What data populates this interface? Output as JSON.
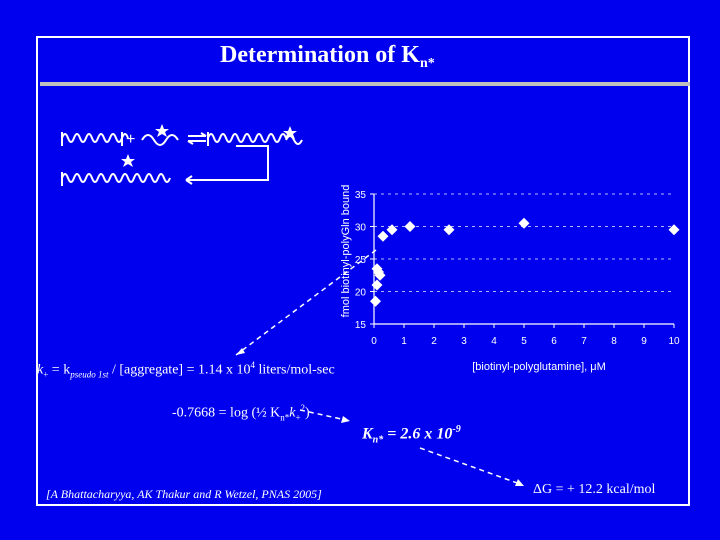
{
  "title": {
    "main": "Determination of K",
    "subscript": "n*"
  },
  "equations": {
    "kplus": {
      "lhs_k": "k",
      "lhs_sub": "+",
      "eq": " = k",
      "pseudo_sub": "pseudo 1st",
      "rest": " / [aggregate] = 1.14 x 10",
      "exp": "4",
      "units": " liters/mol-sec"
    },
    "log": {
      "pre": "-0.7668 = log (½ K",
      "sub1": "n*",
      "mid": "k",
      "sub2": "+",
      "sup2": "2",
      "post": ")"
    },
    "result": {
      "k": "K",
      "sub": "n*",
      "val": " = 2.6 x 10",
      "exp": "-9"
    },
    "deltaG": "ΔG = + 12.2 kcal/mol"
  },
  "citation": "[A Bhattacharyya, AK Thakur and R Wetzel, PNAS 2005]",
  "chart_data": {
    "type": "scatter",
    "title": "",
    "xlabel": "[biotinyl-polyglutamine], μM",
    "ylabel": "fmol biotinyl-polyGln bound",
    "xlim": [
      0,
      10
    ],
    "ylim": [
      15,
      35
    ],
    "xticks": [
      0,
      1,
      2,
      3,
      4,
      5,
      6,
      7,
      8,
      9,
      10
    ],
    "yticks": [
      15,
      20,
      25,
      30,
      35
    ],
    "grid": "dashed horizontal lines",
    "reference_line": {
      "y": 30,
      "style": "dashed"
    },
    "points": [
      {
        "x": 0.05,
        "y": 18.5
      },
      {
        "x": 0.1,
        "y": 21.0
      },
      {
        "x": 0.1,
        "y": 23.5
      },
      {
        "x": 0.15,
        "y": 23.0
      },
      {
        "x": 0.2,
        "y": 22.5
      },
      {
        "x": 0.3,
        "y": 28.5
      },
      {
        "x": 0.6,
        "y": 29.5
      },
      {
        "x": 1.2,
        "y": 30.0
      },
      {
        "x": 2.5,
        "y": 29.5
      },
      {
        "x": 5.0,
        "y": 30.5
      },
      {
        "x": 10.0,
        "y": 29.5
      }
    ],
    "marker": "diamond",
    "colors": {
      "background": "#0000ee",
      "marker": "#ffffff",
      "text": "#ffffff"
    }
  }
}
